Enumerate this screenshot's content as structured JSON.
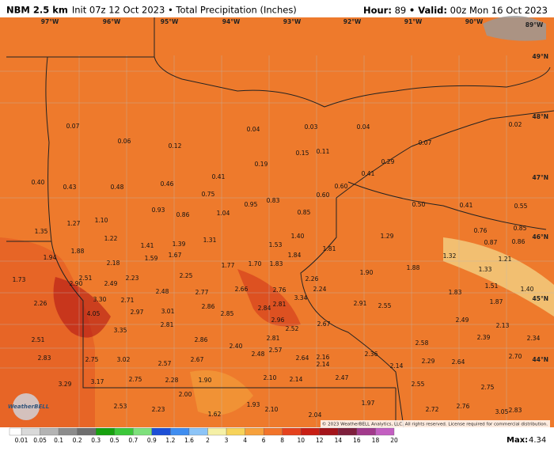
{
  "header": {
    "model": "NBM 2.5 km",
    "init": "Init 07z 12 Oct 2023 • Total Precipitation (Inches)",
    "hour_label": "Hour:",
    "hour": "89",
    "valid_label": "• Valid:",
    "valid": "00z Mon 16 Oct 2023"
  },
  "longitudes": [
    "97°W",
    "96°W",
    "95°W",
    "94°W",
    "93°W",
    "92°W",
    "91°W",
    "90°W",
    "89°W"
  ],
  "latitudes": [
    "49°N",
    "48°N",
    "47°N",
    "46°N",
    "45°N",
    "44°N"
  ],
  "values": [
    "0.07",
    "0.06",
    "0.12",
    "0.04",
    "0.03",
    "0.04",
    "0.07",
    "0.02",
    "0.15",
    "0.11",
    "0.19",
    "0.29",
    "0.41",
    "0.41",
    "0.40",
    "0.43",
    "0.48",
    "0.46",
    "0.75",
    "0.60",
    "0.60",
    "0.95",
    "0.83",
    "0.50",
    "0.41",
    "0.55",
    "0.93",
    "0.86",
    "1.04",
    "0.85",
    "1.10",
    "1.27",
    "1.35",
    "0.76",
    "0.85",
    "1.22",
    "1.31",
    "1.40",
    "1.29",
    "0.87",
    "0.86",
    "1.41",
    "1.39",
    "1.53",
    "1.59",
    "1.67",
    "1.94",
    "1.88",
    "1.84",
    "1.81",
    "1.32",
    "1.21",
    "2.18",
    "1.77",
    "1.70",
    "1.83",
    "1.33",
    "1.90",
    "1.88",
    "2.23",
    "2.25",
    "1.73",
    "2.90",
    "2.51",
    "2.49",
    "2.26",
    "1.51",
    "1.40",
    "2.48",
    "2.77",
    "2.66",
    "2.76",
    "2.24",
    "1.83",
    "3.30",
    "2.71",
    "3.34",
    "2.81",
    "2.26",
    "2.86",
    "2.84",
    "2.91",
    "2.55",
    "1.87",
    "2.97",
    "3.01",
    "2.85",
    "4.05",
    "2.96",
    "2.49",
    "2.81",
    "2.67",
    "2.13",
    "3.35",
    "2.52",
    "2.39",
    "2.51",
    "2.86",
    "2.81",
    "2.34",
    "2.40",
    "2.58",
    "2.57",
    "2.48",
    "2.36",
    "2.83",
    "2.75",
    "3.02",
    "2.67",
    "2.64",
    "2.16",
    "2.70",
    "2.57",
    "2.14",
    "2.29",
    "2.64",
    "2.14",
    "2.75",
    "2.28",
    "1.90",
    "2.10",
    "2.14",
    "2.47",
    "3.29",
    "3.17",
    "2.55",
    "2.75",
    "2.00",
    "1.93",
    "1.97",
    "2.53",
    "2.23",
    "2.10",
    "2.72",
    "2.76",
    "3.05",
    "2.83",
    "1.62",
    "2.04"
  ],
  "logo": "WeatherBELL",
  "copyright": "© 2023 WeatherBELL Analytics, LLC. All rights reserved. License required for commercial distribution.",
  "colorbar": {
    "labels": [
      "0.01",
      "0.05",
      "0.1",
      "0.2",
      "0.3",
      "0.5",
      "0.7",
      "0.9",
      "1.2",
      "1.6",
      "2",
      "3",
      "4",
      "6",
      "8",
      "10",
      "12",
      "14",
      "16",
      "18",
      "20"
    ],
    "colors": [
      "#d9d9d9",
      "#b3b3b3",
      "#8c8c8c",
      "#6e6e6e",
      "#17a10f",
      "#3cc73a",
      "#7ee07c",
      "#1c4fd6",
      "#3f8df0",
      "#8cc4f7",
      "#f5f0a6",
      "#f7d35a",
      "#f7a13c",
      "#f2742a",
      "#e5421d",
      "#c81e14",
      "#a4141a",
      "#7e1f3c",
      "#a23a8c",
      "#c35fc1"
    ]
  },
  "max_label": "Max:",
  "max": "4.34"
}
